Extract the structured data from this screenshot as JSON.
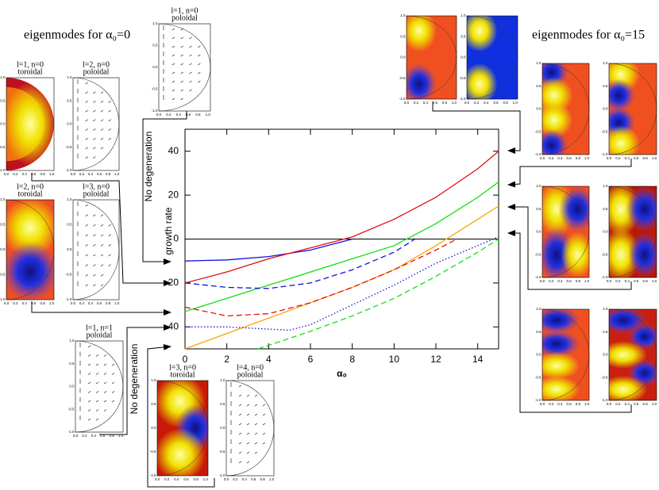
{
  "chart_data": {
    "type": "line",
    "x_label": "α₀",
    "y_label": "growth rate",
    "xlim": [
      0,
      15
    ],
    "ylim": [
      -50,
      50
    ],
    "xticks": [
      0,
      2,
      4,
      6,
      8,
      10,
      12,
      14
    ],
    "yticks": [
      -40,
      -20,
      0,
      20,
      40
    ],
    "series": [
      {
        "color": "#1010e0",
        "style": "solid",
        "x": [
          0,
          2,
          4,
          6,
          8
        ],
        "values": [
          -10,
          -9.5,
          -8,
          -5,
          0
        ]
      },
      {
        "color": "#e01010",
        "style": "solid",
        "x": [
          0,
          2,
          4,
          6,
          8,
          10,
          12,
          14,
          15
        ],
        "values": [
          -20,
          -15,
          -9,
          -4,
          1,
          9,
          19,
          32,
          40
        ]
      },
      {
        "color": "#10e010",
        "style": "solid",
        "x": [
          0,
          2,
          4,
          6,
          8,
          10,
          12,
          14,
          15
        ],
        "values": [
          -33,
          -27,
          -21,
          -15,
          -9,
          -3,
          7,
          19,
          26
        ]
      },
      {
        "color": "#ffa500",
        "style": "solid",
        "x": [
          0,
          2,
          4,
          6,
          8,
          10,
          12,
          14,
          15
        ],
        "values": [
          -50,
          -43,
          -36,
          -29,
          -22,
          -14,
          -3,
          9,
          15
        ]
      },
      {
        "color": "#1010e0",
        "style": "dashed",
        "x": [
          0,
          2,
          4,
          6,
          8,
          10,
          11
        ],
        "values": [
          -20,
          -22,
          -22.5,
          -20,
          -14,
          -6,
          0
        ]
      },
      {
        "color": "#e01010",
        "style": "dashed",
        "x": [
          0,
          2,
          4,
          6,
          8,
          10,
          12,
          13
        ],
        "values": [
          -31,
          -35,
          -34,
          -29,
          -22,
          -14,
          -5,
          0
        ]
      },
      {
        "color": "#1010e0",
        "style": "dotted",
        "x": [
          0,
          2,
          4,
          5,
          6,
          8,
          10,
          12,
          14,
          15
        ],
        "values": [
          -40,
          -40,
          -41,
          -41.5,
          -39,
          -30,
          -21,
          -11,
          -3,
          1
        ]
      },
      {
        "color": "#10e010",
        "style": "dashed",
        "x": [
          3.5,
          6,
          8,
          10,
          12,
          14,
          15
        ],
        "values": [
          -50,
          -42,
          -35,
          -27,
          -17,
          -6,
          0
        ]
      }
    ]
  },
  "captions": {
    "left": "eigenmodes for α₀=0",
    "right": "eigenmodes for α₀=15",
    "no_degeneration": "No degeneration"
  },
  "panels": [
    {
      "title": "l=1, n=0",
      "subtitle": "poloidal"
    },
    {
      "title": "l=1, n=0",
      "subtitle": "toroidal"
    },
    {
      "title": "l=2, n=0",
      "subtitle": "poloidal"
    },
    {
      "title": "l=2, n=0",
      "subtitle": "toroidal"
    },
    {
      "title": "l=3, n=0",
      "subtitle": "poloidal"
    },
    {
      "title": "l=1, n=1",
      "subtitle": "poloidal"
    },
    {
      "title": "l=3, n=0",
      "subtitle": "toroidal"
    },
    {
      "title": "l=4, n=0",
      "subtitle": "poloidal"
    }
  ],
  "thumb_xticks": [
    "0.0",
    "0.2",
    "0.4",
    "0.6",
    "0.8",
    "1.0"
  ],
  "thumb_yticks": [
    "1.0",
    "0.5",
    "0.0",
    "-0.5",
    "-1.0"
  ]
}
